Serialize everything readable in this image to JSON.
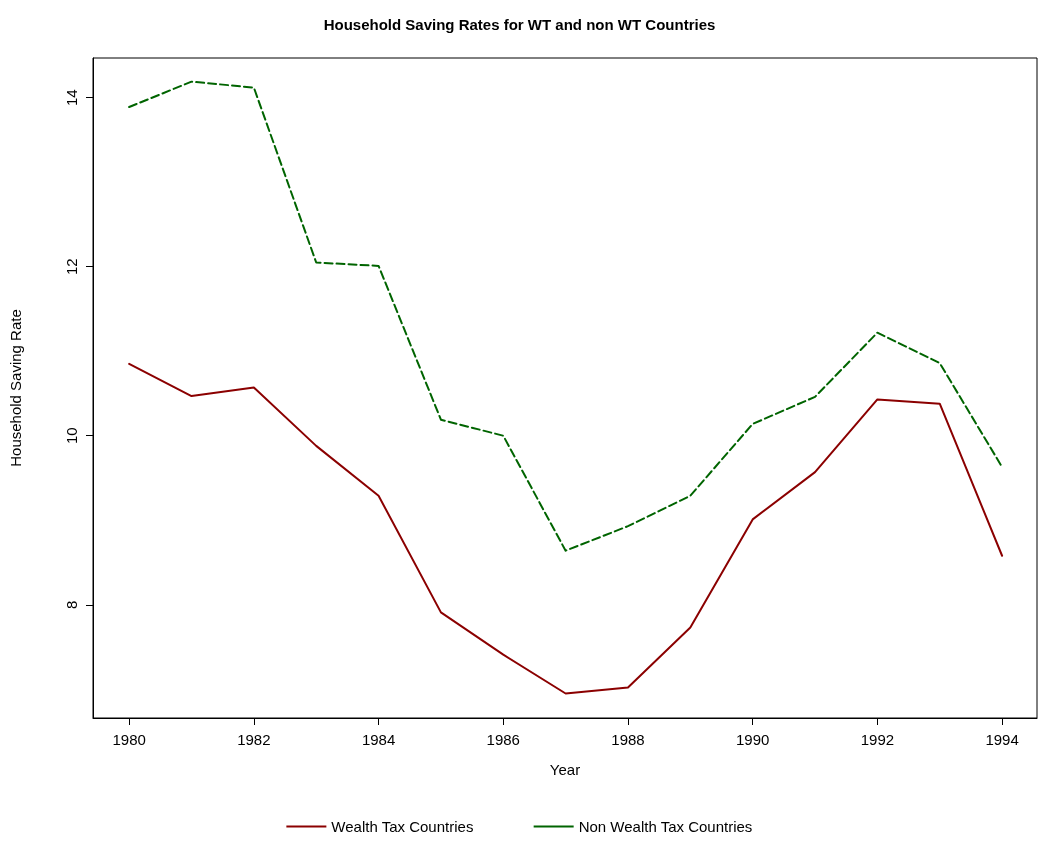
{
  "chart_data": {
    "type": "line",
    "title": "Household Saving Rates for WT and non WT Countries",
    "xlabel": "Year",
    "ylabel": "Household Saving Rate",
    "x": [
      1980,
      1981,
      1982,
      1983,
      1984,
      1985,
      1986,
      1987,
      1988,
      1989,
      1990,
      1991,
      1992,
      1993,
      1994
    ],
    "series": [
      {
        "name": "Wealth Tax Countries",
        "color": "#8b0000",
        "line_style": "solid",
        "values": [
          10.85,
          10.47,
          10.57,
          9.88,
          9.29,
          7.91,
          7.41,
          6.95,
          7.02,
          7.73,
          9.01,
          9.57,
          10.43,
          10.38,
          8.58
        ]
      },
      {
        "name": "Non Wealth Tax Countries",
        "color": "#006400",
        "line_style": "dashed",
        "values": [
          13.89,
          14.19,
          14.12,
          12.05,
          12.01,
          10.19,
          10.0,
          8.64,
          8.93,
          9.29,
          10.14,
          10.46,
          11.22,
          10.86,
          9.63
        ]
      }
    ],
    "xlim": [
      1979.42,
      1994.56
    ],
    "xticks": [
      1980,
      1982,
      1984,
      1986,
      1988,
      1990,
      1992,
      1994
    ],
    "ylim": [
      6.66,
      14.47
    ],
    "yticks": [
      8,
      10,
      12,
      14
    ],
    "grid": false,
    "legend": "bottom",
    "marker": "none"
  }
}
